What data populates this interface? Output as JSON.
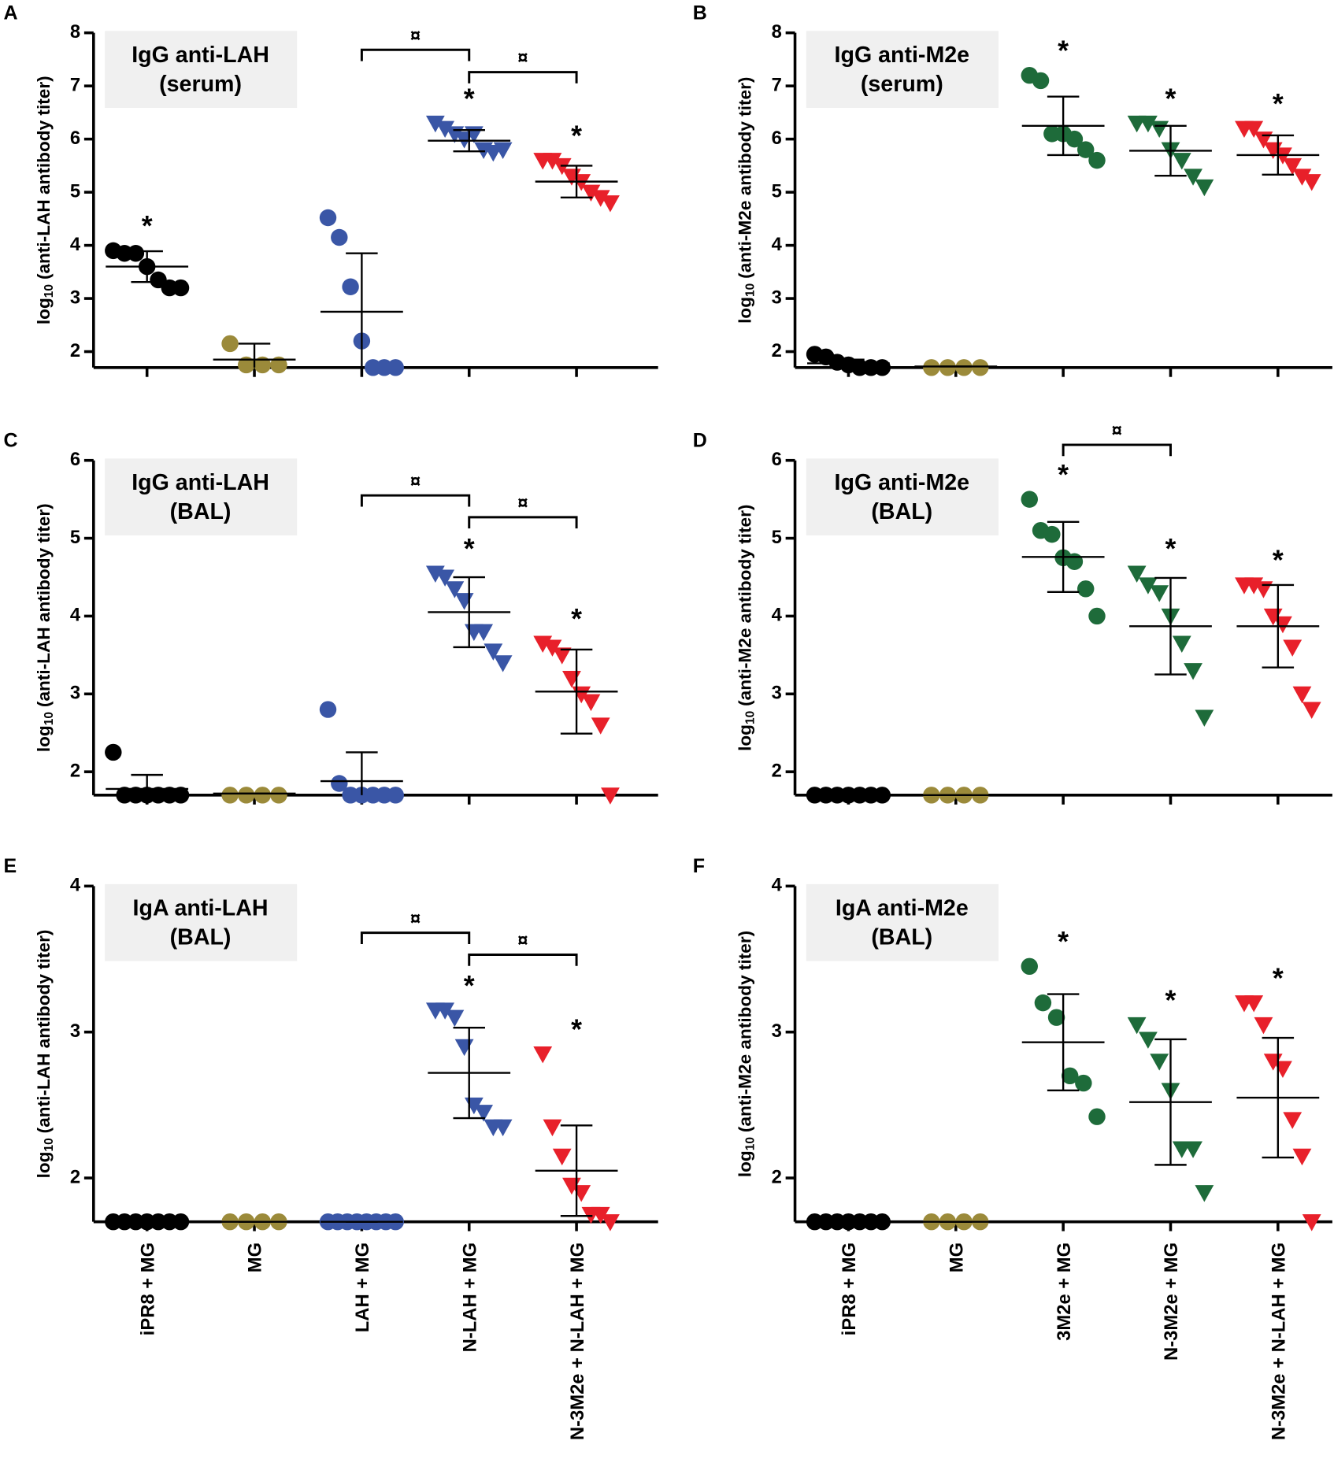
{
  "chart_data": [
    {
      "type": "scatter",
      "letter": "A",
      "title": [
        "IgG anti-LAH",
        "(serum)"
      ],
      "ylabel": {
        "prefix": "log",
        "sub": "10",
        "text": "(anti-LAH antibody titer)"
      },
      "ylim": [
        1.7,
        8
      ],
      "yticks": [
        2,
        3,
        4,
        5,
        6,
        7,
        8
      ],
      "groups": [
        {
          "color": "#000000",
          "marker": "circle",
          "points": [
            3.9,
            3.85,
            3.85,
            3.6,
            3.35,
            3.2,
            3.2
          ],
          "mean": 3.6,
          "sd": 0.29,
          "annotation": "*"
        },
        {
          "color": "#9b8a3a",
          "marker": "circle",
          "points": [
            2.15,
            1.75,
            1.75,
            1.75
          ],
          "mean": 1.85,
          "sd": 0.3
        },
        {
          "color": "#3a56a6",
          "marker": "circle",
          "points": [
            4.52,
            4.15,
            3.22,
            2.2,
            1.7,
            1.7,
            1.7
          ],
          "mean": 2.75,
          "sd": 1.1
        },
        {
          "color": "#3a56a6",
          "marker": "triangle",
          "points": [
            6.3,
            6.2,
            6.1,
            6.0,
            6.1,
            5.8,
            5.75,
            5.8
          ],
          "mean": 5.97,
          "sd": 0.2,
          "annotation": "*"
        },
        {
          "color": "#e8202a",
          "marker": "triangle",
          "points": [
            5.6,
            5.6,
            5.5,
            5.3,
            5.2,
            5.0,
            4.9,
            4.8
          ],
          "mean": 5.2,
          "sd": 0.3,
          "annotation": "*"
        }
      ],
      "brackets": [
        {
          "from": 2,
          "to": 3,
          "y": 7.68,
          "label": "¤"
        },
        {
          "from": 3,
          "to": 4,
          "y": 7.26,
          "label": "¤"
        }
      ]
    },
    {
      "type": "scatter",
      "letter": "B",
      "title": [
        "IgG anti-M2e",
        "(serum)"
      ],
      "ylabel": {
        "prefix": "log",
        "sub": "10",
        "text": "(anti-M2e antibody titer)"
      },
      "ylim": [
        1.7,
        8
      ],
      "yticks": [
        2,
        3,
        4,
        5,
        6,
        7,
        8
      ],
      "groups": [
        {
          "color": "#000000",
          "marker": "circle",
          "points": [
            1.95,
            1.9,
            1.8,
            1.75,
            1.7,
            1.7,
            1.7
          ],
          "mean": 1.78,
          "sd": 0.07
        },
        {
          "color": "#9b8a3a",
          "marker": "circle",
          "points": [
            1.7,
            1.7,
            1.7,
            1.7
          ],
          "mean": 1.72,
          "sd": 0
        },
        {
          "color": "#1e6b3a",
          "marker": "circle",
          "points": [
            7.2,
            7.1,
            6.1,
            6.1,
            6.0,
            5.8,
            5.6
          ],
          "mean": 6.25,
          "sd": 0.55,
          "annotation": "*"
        },
        {
          "color": "#1e6b3a",
          "marker": "triangle",
          "points": [
            6.3,
            6.3,
            6.2,
            5.8,
            5.6,
            5.3,
            5.1
          ],
          "mean": 5.78,
          "sd": 0.47,
          "annotation": "*"
        },
        {
          "color": "#e8202a",
          "marker": "triangle",
          "points": [
            6.2,
            6.2,
            6.0,
            5.8,
            5.7,
            5.5,
            5.3,
            5.2
          ],
          "mean": 5.7,
          "sd": 0.37,
          "annotation": "*"
        }
      ],
      "brackets": []
    },
    {
      "type": "scatter",
      "letter": "C",
      "title": [
        "IgG anti-LAH",
        "(BAL)"
      ],
      "ylabel": {
        "prefix": "log",
        "sub": "10",
        "text": "(anti-LAH antibody titer)"
      },
      "ylim": [
        1.7,
        6
      ],
      "yticks": [
        2,
        3,
        4,
        5,
        6
      ],
      "groups": [
        {
          "color": "#000000",
          "marker": "circle",
          "points": [
            2.25,
            1.7,
            1.7,
            1.7,
            1.7,
            1.7,
            1.7
          ],
          "mean": 1.78,
          "sd": 0.18
        },
        {
          "color": "#9b8a3a",
          "marker": "circle",
          "points": [
            1.7,
            1.7,
            1.7,
            1.7
          ],
          "mean": 1.72,
          "sd": 0
        },
        {
          "color": "#3a56a6",
          "marker": "circle",
          "points": [
            2.8,
            1.85,
            1.7,
            1.7,
            1.7,
            1.7,
            1.7
          ],
          "mean": 1.88,
          "sd": 0.37
        },
        {
          "color": "#3a56a6",
          "marker": "triangle",
          "points": [
            4.55,
            4.5,
            4.35,
            4.2,
            3.8,
            3.8,
            3.55,
            3.4
          ],
          "mean": 4.05,
          "sd": 0.45,
          "annotation": "*"
        },
        {
          "color": "#e8202a",
          "marker": "triangle",
          "points": [
            3.65,
            3.6,
            3.5,
            3.2,
            3.0,
            2.9,
            2.6,
            1.7
          ],
          "mean": 3.03,
          "sd": 0.54,
          "annotation": "*"
        }
      ],
      "brackets": [
        {
          "from": 2,
          "to": 3,
          "y": 5.55,
          "label": "¤"
        },
        {
          "from": 3,
          "to": 4,
          "y": 5.27,
          "label": "¤"
        }
      ]
    },
    {
      "type": "scatter",
      "letter": "D",
      "title": [
        "IgG anti-M2e",
        "(BAL)"
      ],
      "ylabel": {
        "prefix": "log",
        "sub": "10",
        "text": "(anti-M2e antibody titer)"
      },
      "ylim": [
        1.7,
        6
      ],
      "yticks": [
        2,
        3,
        4,
        5,
        6
      ],
      "groups": [
        {
          "color": "#000000",
          "marker": "circle",
          "points": [
            1.7,
            1.7,
            1.7,
            1.7,
            1.7,
            1.7,
            1.7
          ],
          "mean": 1.7,
          "sd": 0
        },
        {
          "color": "#9b8a3a",
          "marker": "circle",
          "points": [
            1.7,
            1.7,
            1.7,
            1.7
          ],
          "mean": 1.7,
          "sd": 0
        },
        {
          "color": "#1e6b3a",
          "marker": "circle",
          "points": [
            5.5,
            5.1,
            5.05,
            4.75,
            4.7,
            4.35,
            4.0
          ],
          "mean": 4.76,
          "sd": 0.45,
          "annotation": "*"
        },
        {
          "color": "#1e6b3a",
          "marker": "triangle",
          "points": [
            4.55,
            4.4,
            4.3,
            4.0,
            3.65,
            3.3,
            2.7
          ],
          "mean": 3.87,
          "sd": 0.62,
          "annotation": "*"
        },
        {
          "color": "#e8202a",
          "marker": "triangle",
          "points": [
            4.4,
            4.4,
            4.35,
            4.0,
            3.9,
            3.6,
            3.0,
            2.8
          ],
          "mean": 3.87,
          "sd": 0.53,
          "annotation": "*"
        }
      ],
      "brackets": [
        {
          "from": 2,
          "to": 3,
          "y": 6.2,
          "label": "¤"
        }
      ]
    },
    {
      "type": "scatter",
      "letter": "E",
      "title": [
        "IgA anti-LAH",
        "(BAL)"
      ],
      "ylabel": {
        "prefix": "log",
        "sub": "10",
        "text": "(anti-LAH antibody titer)"
      },
      "ylim": [
        1.7,
        4
      ],
      "yticks": [
        2,
        3,
        4
      ],
      "categories": [
        "iPR8 + MG",
        "MG",
        "LAH + MG",
        "N-LAH + MG",
        "N-3M2e + N-LAH + MG"
      ],
      "groups": [
        {
          "color": "#000000",
          "marker": "circle",
          "points": [
            1.7,
            1.7,
            1.7,
            1.7,
            1.7,
            1.7,
            1.7
          ],
          "mean": 1.7,
          "sd": 0
        },
        {
          "color": "#9b8a3a",
          "marker": "circle",
          "points": [
            1.7,
            1.7,
            1.7,
            1.7
          ],
          "mean": 1.7,
          "sd": 0
        },
        {
          "color": "#3a56a6",
          "marker": "circle",
          "points": [
            1.7,
            1.7,
            1.7,
            1.7,
            1.7,
            1.7,
            1.7,
            1.7
          ],
          "mean": 1.7,
          "sd": 0
        },
        {
          "color": "#3a56a6",
          "marker": "triangle",
          "points": [
            3.15,
            3.15,
            3.1,
            2.9,
            2.5,
            2.45,
            2.35,
            2.35
          ],
          "mean": 2.72,
          "sd": 0.31,
          "annotation": "*"
        },
        {
          "color": "#e8202a",
          "marker": "triangle",
          "points": [
            2.85,
            2.35,
            2.15,
            1.95,
            1.9,
            1.75,
            1.75,
            1.7
          ],
          "mean": 2.05,
          "sd": 0.31,
          "annotation": "*"
        }
      ],
      "brackets": [
        {
          "from": 2,
          "to": 3,
          "y": 3.68,
          "label": "¤"
        },
        {
          "from": 3,
          "to": 4,
          "y": 3.53,
          "label": "¤"
        }
      ]
    },
    {
      "type": "scatter",
      "letter": "F",
      "title": [
        "IgA anti-M2e",
        "(BAL)"
      ],
      "ylabel": {
        "prefix": "log",
        "sub": "10",
        "text": "(anti-M2e antibody titer)"
      },
      "ylim": [
        1.7,
        4
      ],
      "yticks": [
        2,
        3,
        4
      ],
      "categories": [
        "iPR8 + MG",
        "MG",
        "3M2e + MG",
        "N-3M2e + MG",
        "N-3M2e + N-LAH + MG"
      ],
      "groups": [
        {
          "color": "#000000",
          "marker": "circle",
          "points": [
            1.7,
            1.7,
            1.7,
            1.7,
            1.7,
            1.7,
            1.7
          ],
          "mean": 1.7,
          "sd": 0
        },
        {
          "color": "#9b8a3a",
          "marker": "circle",
          "points": [
            1.7,
            1.7,
            1.7,
            1.7
          ],
          "mean": 1.7,
          "sd": 0
        },
        {
          "color": "#1e6b3a",
          "marker": "circle",
          "points": [
            3.45,
            3.2,
            3.1,
            2.7,
            2.65,
            2.42
          ],
          "mean": 2.93,
          "sd": 0.33,
          "annotation": "*"
        },
        {
          "color": "#1e6b3a",
          "marker": "triangle",
          "points": [
            3.05,
            2.95,
            2.8,
            2.6,
            2.2,
            2.2,
            1.9
          ],
          "mean": 2.52,
          "sd": 0.43,
          "annotation": "*"
        },
        {
          "color": "#e8202a",
          "marker": "triangle",
          "points": [
            3.2,
            3.2,
            3.05,
            2.8,
            2.75,
            2.4,
            2.15,
            1.7
          ],
          "mean": 2.55,
          "sd": 0.41,
          "annotation": "*"
        }
      ],
      "brackets": []
    }
  ]
}
